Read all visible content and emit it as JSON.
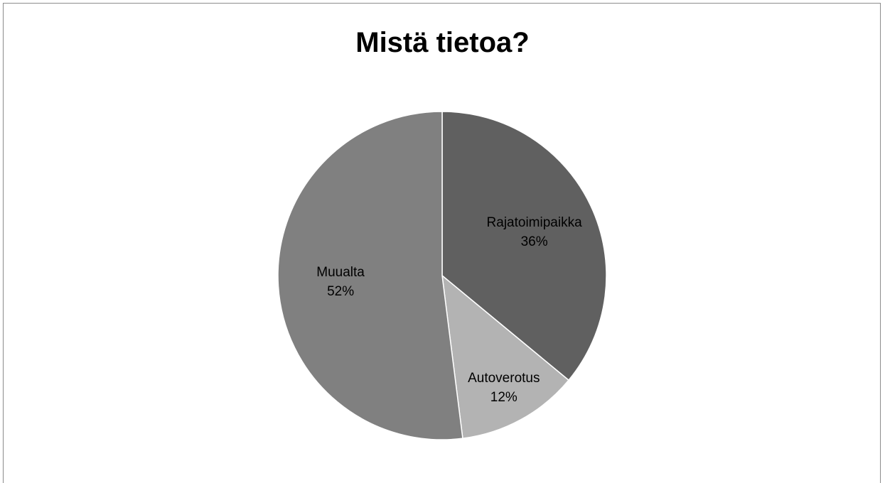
{
  "chart_data": {
    "type": "pie",
    "title": "Mistä tietoa?",
    "slices": [
      {
        "label": "Rajatoimipaikka",
        "value": 36,
        "value_label": "36%",
        "color": "#606060"
      },
      {
        "label": "Autoverotus",
        "value": 12,
        "value_label": "12%",
        "color": "#b3b3b3"
      },
      {
        "label": "Muualta",
        "value": 52,
        "value_label": "52%",
        "color": "#808080"
      }
    ],
    "start_angle": "12 o'clock",
    "direction": "clockwise",
    "legend": "none",
    "slice_border_color": "#ffffff"
  }
}
